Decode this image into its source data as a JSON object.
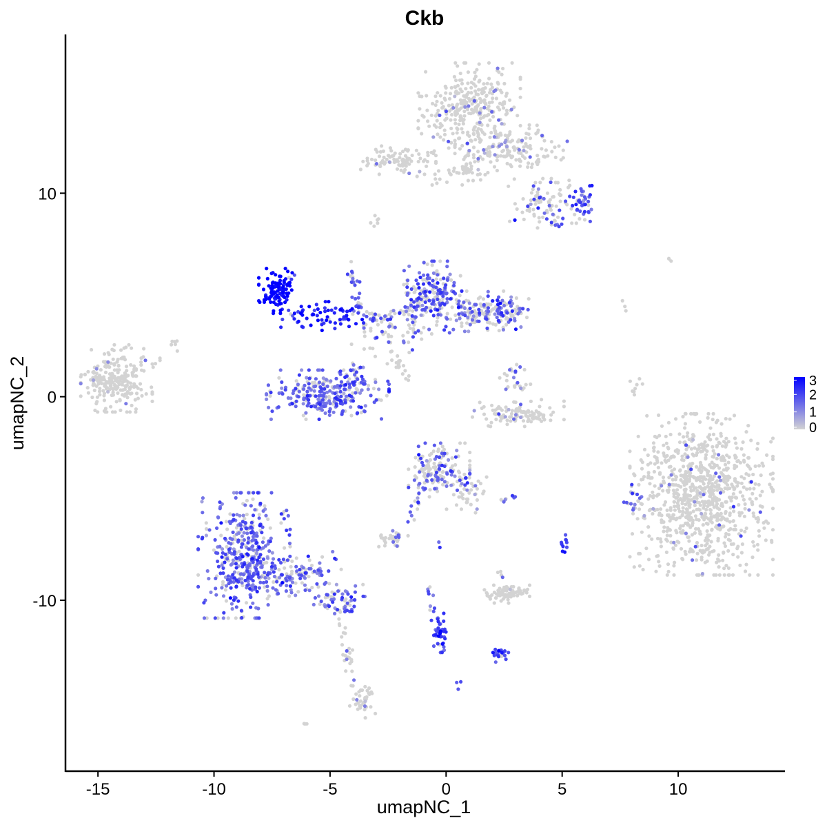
{
  "chart_data": {
    "type": "scatter",
    "title": "Ckb",
    "xlabel": "umapNC_1",
    "ylabel": "umapNC_2",
    "xlim": [
      -16.4,
      14.6
    ],
    "ylim": [
      -18.4,
      17.8
    ],
    "x_ticks": [
      -15,
      -10,
      -5,
      0,
      5,
      10
    ],
    "x_tick_labels": [
      "-15",
      "-10",
      "-5",
      "0",
      "5",
      "10"
    ],
    "y_ticks": [
      -10,
      0,
      10
    ],
    "y_tick_labels": [
      "-10",
      "0",
      "10"
    ],
    "grid": false,
    "legend": {
      "placement": "right",
      "type": "colorbar",
      "labels": [
        "3",
        "2",
        "1",
        "0"
      ],
      "values": [
        3,
        2,
        1,
        0
      ],
      "color_low": "#d3d3d3",
      "color_high": "#0000ff"
    },
    "clusters": [
      {
        "cx": -14.2,
        "cy": 0.9,
        "sx": 0.7,
        "sy": 0.75,
        "n": 240,
        "expr": 0.02,
        "expr_level": 1.0
      },
      {
        "cx": 11.0,
        "cy": -4.8,
        "sx": 1.4,
        "sy": 1.8,
        "n": 900,
        "expr": 0.03,
        "expr_level": 1.2
      },
      {
        "cx": 8.1,
        "cy": -5.2,
        "sx": 0.2,
        "sy": 0.4,
        "n": 20,
        "expr": 0.8,
        "expr_level": 1.6
      },
      {
        "cx": 1.0,
        "cy": 14.2,
        "sx": 1.0,
        "sy": 1.0,
        "n": 320,
        "expr": 0.06,
        "expr_level": 1.2
      },
      {
        "cx": 2.8,
        "cy": 12.2,
        "sx": 1.1,
        "sy": 0.55,
        "n": 150,
        "expr": 0.08,
        "expr_level": 1.2
      },
      {
        "cx": -2.2,
        "cy": 11.7,
        "sx": 0.8,
        "sy": 0.35,
        "n": 90,
        "expr": 0.02,
        "expr_level": 1.0
      },
      {
        "cx": 0.6,
        "cy": 11.0,
        "sx": 1.1,
        "sy": 0.3,
        "n": 40,
        "expr": 0.02,
        "expr_level": 1.0
      },
      {
        "cx": 4.5,
        "cy": 9.4,
        "sx": 0.8,
        "sy": 0.6,
        "n": 100,
        "expr": 0.35,
        "expr_level": 1.8
      },
      {
        "cx": 5.8,
        "cy": 9.6,
        "sx": 0.22,
        "sy": 0.35,
        "n": 30,
        "expr": 0.9,
        "expr_level": 2.0
      },
      {
        "cx": -7.3,
        "cy": 5.2,
        "sx": 0.35,
        "sy": 0.5,
        "n": 110,
        "expr": 0.98,
        "expr_level": 3.0
      },
      {
        "cx": -5.4,
        "cy": 3.9,
        "sx": 0.9,
        "sy": 0.35,
        "n": 70,
        "expr": 0.9,
        "expr_level": 2.6
      },
      {
        "cx": -0.7,
        "cy": 4.9,
        "sx": 0.6,
        "sy": 0.8,
        "n": 200,
        "expr": 0.55,
        "expr_level": 1.7
      },
      {
        "cx": 1.8,
        "cy": 4.2,
        "sx": 0.8,
        "sy": 0.45,
        "n": 190,
        "expr": 0.5,
        "expr_level": 1.6
      },
      {
        "cx": -2.6,
        "cy": 3.3,
        "sx": 0.9,
        "sy": 0.6,
        "n": 70,
        "expr": 0.35,
        "expr_level": 1.5
      },
      {
        "cx": -5.1,
        "cy": 0.1,
        "sx": 1.2,
        "sy": 0.55,
        "n": 260,
        "expr": 0.7,
        "expr_level": 1.6
      },
      {
        "cx": -4.0,
        "cy": 1.0,
        "sx": 0.25,
        "sy": 0.4,
        "n": 30,
        "expr": 0.7,
        "expr_level": 1.7
      },
      {
        "cx": 3.1,
        "cy": -0.8,
        "sx": 0.9,
        "sy": 0.3,
        "n": 110,
        "expr": 0.08,
        "expr_level": 1.3
      },
      {
        "cx": 3.2,
        "cy": 0.7,
        "sx": 0.2,
        "sy": 0.4,
        "n": 15,
        "expr": 0.3,
        "expr_level": 1.4
      },
      {
        "cx": -0.3,
        "cy": -3.6,
        "sx": 0.6,
        "sy": 0.6,
        "n": 140,
        "expr": 0.5,
        "expr_level": 1.5
      },
      {
        "cx": 0.9,
        "cy": -4.6,
        "sx": 0.4,
        "sy": 0.5,
        "n": 40,
        "expr": 0.2,
        "expr_level": 1.3
      },
      {
        "cx": -8.7,
        "cy": -7.8,
        "sx": 0.9,
        "sy": 1.4,
        "n": 430,
        "expr": 0.75,
        "expr_level": 1.6
      },
      {
        "cx": -6.5,
        "cy": -8.7,
        "sx": 0.9,
        "sy": 0.5,
        "n": 110,
        "expr": 0.7,
        "expr_level": 1.6
      },
      {
        "cx": -4.6,
        "cy": -10.0,
        "sx": 0.5,
        "sy": 0.35,
        "n": 60,
        "expr": 0.65,
        "expr_level": 1.7
      },
      {
        "cx": -2.3,
        "cy": -7.0,
        "sx": 0.3,
        "sy": 0.2,
        "n": 35,
        "expr": 0.15,
        "expr_level": 1.3
      },
      {
        "cx": 2.5,
        "cy": -9.7,
        "sx": 0.5,
        "sy": 0.2,
        "n": 80,
        "expr": 0.02,
        "expr_level": 1.0
      },
      {
        "cx": -0.2,
        "cy": -11.8,
        "sx": 0.15,
        "sy": 0.35,
        "n": 30,
        "expr": 0.9,
        "expr_level": 2.1
      },
      {
        "cx": 2.3,
        "cy": -12.6,
        "sx": 0.2,
        "sy": 0.2,
        "n": 22,
        "expr": 0.9,
        "expr_level": 2.0
      },
      {
        "cx": 5.1,
        "cy": -7.3,
        "sx": 0.08,
        "sy": 0.3,
        "n": 10,
        "expr": 0.9,
        "expr_level": 2.0
      },
      {
        "cx": -3.6,
        "cy": -14.9,
        "sx": 0.25,
        "sy": 0.4,
        "n": 35,
        "expr": 0.05,
        "expr_level": 1.0
      },
      {
        "cx": 2.8,
        "cy": -5.0,
        "sx": 0.2,
        "sy": 0.1,
        "n": 8,
        "expr": 0.6,
        "expr_level": 1.6
      },
      {
        "cx": -3.0,
        "cy": 8.6,
        "sx": 0.15,
        "sy": 0.15,
        "n": 6,
        "expr": 0.02,
        "expr_level": 1.0
      }
    ],
    "trails": [
      {
        "from": [
          -12.8,
          1.3
        ],
        "to": [
          -11.6,
          2.7
        ],
        "n": 10,
        "expr": 0.0,
        "expr_level": 1.0
      },
      {
        "from": [
          -3.7,
          4.0
        ],
        "to": [
          -4.1,
          6.8
        ],
        "n": 25,
        "expr": 0.6,
        "expr_level": 1.7
      },
      {
        "from": [
          -3.3,
          3.7
        ],
        "to": [
          -1.2,
          4.4
        ],
        "n": 25,
        "expr": 0.6,
        "expr_level": 1.8
      },
      {
        "from": [
          -2.6,
          2.3
        ],
        "to": [
          -1.5,
          0.8
        ],
        "n": 18,
        "expr": 0.05,
        "expr_level": 1.0
      },
      {
        "from": [
          -4.8,
          -10.4
        ],
        "to": [
          -3.8,
          -14.8
        ],
        "n": 30,
        "expr": 0.2,
        "expr_level": 1.3
      },
      {
        "from": [
          -0.9,
          -3.9
        ],
        "to": [
          -1.6,
          -6.4
        ],
        "n": 18,
        "expr": 0.5,
        "expr_level": 1.6
      },
      {
        "from": [
          -0.9,
          -9.3
        ],
        "to": [
          -0.2,
          -11.6
        ],
        "n": 22,
        "expr": 0.85,
        "expr_level": 1.8
      },
      {
        "from": [
          7.9,
          -0.2
        ],
        "to": [
          8.3,
          0.8
        ],
        "n": 8,
        "expr": 0.1,
        "expr_level": 1.2
      },
      {
        "from": [
          1.1,
          12.8
        ],
        "to": [
          0.8,
          11.2
        ],
        "n": 15,
        "expr": 0.05,
        "expr_level": 1.0
      },
      {
        "from": [
          2.5,
          0.3
        ],
        "to": [
          2.8,
          1.4
        ],
        "n": 10,
        "expr": 0.3,
        "expr_level": 1.4
      },
      {
        "from": [
          7.6,
          4.8
        ],
        "to": [
          7.9,
          4.3
        ],
        "n": 3,
        "expr": 0.0,
        "expr_level": 1.0
      },
      {
        "from": [
          9.5,
          6.7
        ],
        "to": [
          10.0,
          6.8
        ],
        "n": 3,
        "expr": 0.0,
        "expr_level": 1.0
      },
      {
        "from": [
          0.3,
          -14.1
        ],
        "to": [
          0.6,
          -14.2
        ],
        "n": 3,
        "expr": 0.9,
        "expr_level": 2.0
      },
      {
        "from": [
          -6.2,
          -16.2
        ],
        "to": [
          -5.9,
          -16.1
        ],
        "n": 3,
        "expr": 0.0,
        "expr_level": 1.0
      },
      {
        "from": [
          -0.4,
          -7.3
        ],
        "to": [
          -0.3,
          -7.5
        ],
        "n": 2,
        "expr": 0.6,
        "expr_level": 1.6
      },
      {
        "from": [
          2.1,
          -8.5
        ],
        "to": [
          2.5,
          -8.8
        ],
        "n": 4,
        "expr": 0.3,
        "expr_level": 1.4
      }
    ]
  }
}
